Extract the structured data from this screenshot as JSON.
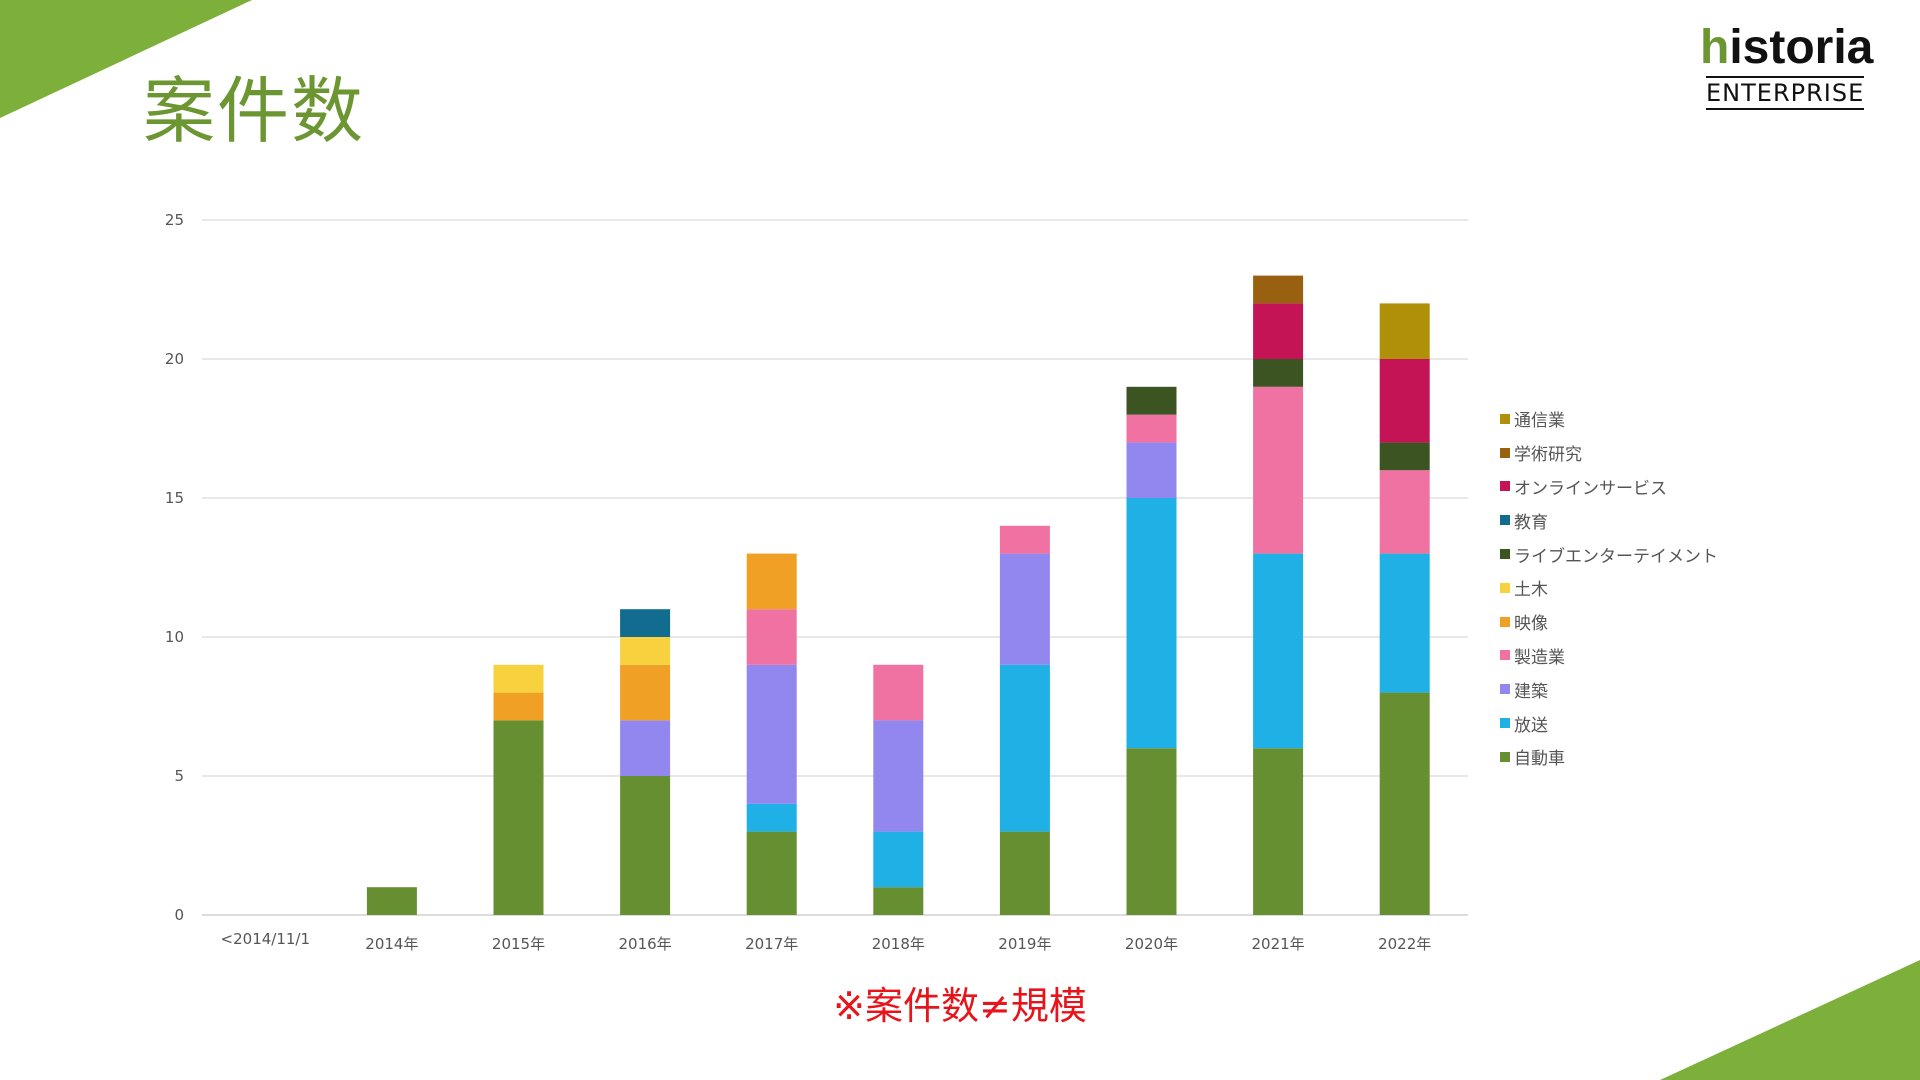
{
  "slide": {
    "title": "案件数",
    "note": "※案件数≠規模"
  },
  "logo": {
    "first_letter": "h",
    "rest": "istoria",
    "sub": "ENTERPRISE"
  },
  "colors": {
    "accent": "#7cb03a",
    "title": "#6c9631",
    "note": "#e8141b"
  },
  "chart_data": {
    "type": "bar",
    "stacked": true,
    "categories": [
      "<2014/11/1",
      "2014年",
      "2015年",
      "2016年",
      "2017年",
      "2018年",
      "2019年",
      "2020年",
      "2021年",
      "2022年"
    ],
    "ylim": [
      0,
      25
    ],
    "yticks": [
      0,
      5,
      10,
      15,
      20,
      25
    ],
    "grid": true,
    "legend_position": "right",
    "series": [
      {
        "name": "自動車",
        "color": "#668f32",
        "values": [
          0,
          1,
          7,
          5,
          3,
          1,
          3,
          6,
          6,
          8
        ]
      },
      {
        "name": "放送",
        "color": "#1fb1e6",
        "values": [
          0,
          0,
          0,
          0,
          1,
          2,
          6,
          9,
          7,
          5
        ]
      },
      {
        "name": "建築",
        "color": "#9287ee",
        "values": [
          0,
          0,
          0,
          2,
          5,
          4,
          4,
          2,
          0,
          0
        ]
      },
      {
        "name": "製造業",
        "color": "#f072a2",
        "values": [
          0,
          0,
          0,
          0,
          2,
          2,
          1,
          1,
          6,
          3
        ]
      },
      {
        "name": "映像",
        "color": "#f0a024",
        "values": [
          0,
          0,
          1,
          2,
          2,
          0,
          0,
          0,
          0,
          0
        ]
      },
      {
        "name": "土木",
        "color": "#f8d23e",
        "values": [
          0,
          0,
          1,
          1,
          0,
          0,
          0,
          0,
          0,
          0
        ]
      },
      {
        "name": "ライブエンターテイメント",
        "color": "#3c5322",
        "values": [
          0,
          0,
          0,
          0,
          0,
          0,
          0,
          1,
          1,
          1
        ]
      },
      {
        "name": "教育",
        "color": "#126c8f",
        "values": [
          0,
          0,
          0,
          1,
          0,
          0,
          0,
          0,
          0,
          0
        ]
      },
      {
        "name": "オンラインサービス",
        "color": "#c51456",
        "values": [
          0,
          0,
          0,
          0,
          0,
          0,
          0,
          0,
          2,
          3
        ]
      },
      {
        "name": "学術研究",
        "color": "#99610f",
        "values": [
          0,
          0,
          0,
          0,
          0,
          0,
          0,
          0,
          1,
          0
        ]
      },
      {
        "name": "通信業",
        "color": "#b19009",
        "values": [
          0,
          0,
          0,
          0,
          0,
          0,
          0,
          0,
          0,
          2
        ]
      }
    ]
  }
}
